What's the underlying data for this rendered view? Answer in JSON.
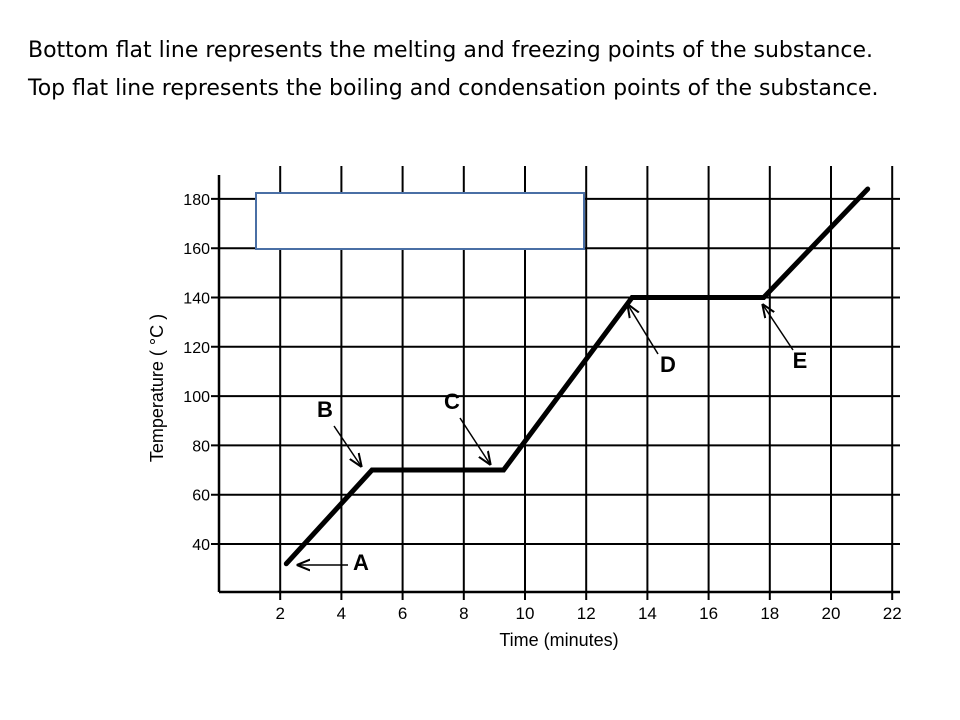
{
  "caption": {
    "line1": "Bottom flat line represents the melting and  freezing points of the substance.",
    "line2": "Top flat line represents the boiling and condensation points of the substance."
  },
  "chart_data": {
    "type": "line",
    "title": "",
    "xlabel": "Time (minutes)",
    "ylabel": "Temperature ( °C )",
    "xlim": [
      0,
      22
    ],
    "ylim": [
      30,
      185
    ],
    "xticks": [
      2,
      4,
      6,
      8,
      10,
      12,
      14,
      16,
      18,
      20,
      22
    ],
    "yticks": [
      40,
      60,
      80,
      100,
      120,
      140,
      160,
      180
    ],
    "grid": true,
    "legend": "none",
    "series": [
      {
        "x": [
          2.2,
          5.0,
          9.3,
          13.5,
          17.8,
          21.2
        ],
        "y": [
          32,
          70,
          70,
          140,
          140,
          184
        ]
      }
    ],
    "annotations": [
      {
        "label": "A",
        "x": 2.4,
        "y": 32
      },
      {
        "label": "B",
        "x": 5.0,
        "y": 72
      },
      {
        "label": "C",
        "x": 9.3,
        "y": 72
      },
      {
        "label": "D",
        "x": 13.7,
        "y": 137
      },
      {
        "label": "E",
        "x": 18.0,
        "y": 137
      }
    ],
    "colors": {
      "line": "#000000",
      "grid": "#000000",
      "cover_fill": "#ffffff",
      "cover_border": "#4a6fa5"
    }
  }
}
